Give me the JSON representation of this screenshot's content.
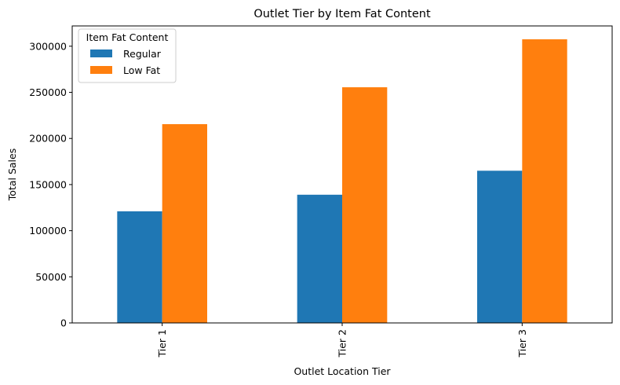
{
  "chart_data": {
    "type": "bar",
    "title": "Outlet Tier by Item Fat Content",
    "xlabel": "Outlet Location Tier",
    "ylabel": "Total Sales",
    "categories": [
      "Tier 1",
      "Tier 2",
      "Tier 3"
    ],
    "series": [
      {
        "name": "Regular",
        "values": [
          121000,
          139000,
          165000
        ],
        "color": "#1f77b4"
      },
      {
        "name": "Low Fat",
        "values": [
          215500,
          255500,
          307500
        ],
        "color": "#ff7f0e"
      }
    ],
    "ylim": [
      0,
      322000
    ],
    "yticks": [
      0,
      50000,
      100000,
      150000,
      200000,
      250000,
      300000
    ],
    "ytick_labels": [
      "0",
      "50000",
      "100000",
      "150000",
      "200000",
      "250000",
      "300000"
    ],
    "legend": {
      "title": "Item Fat Content",
      "placement": "top-left"
    },
    "grid": false
  }
}
